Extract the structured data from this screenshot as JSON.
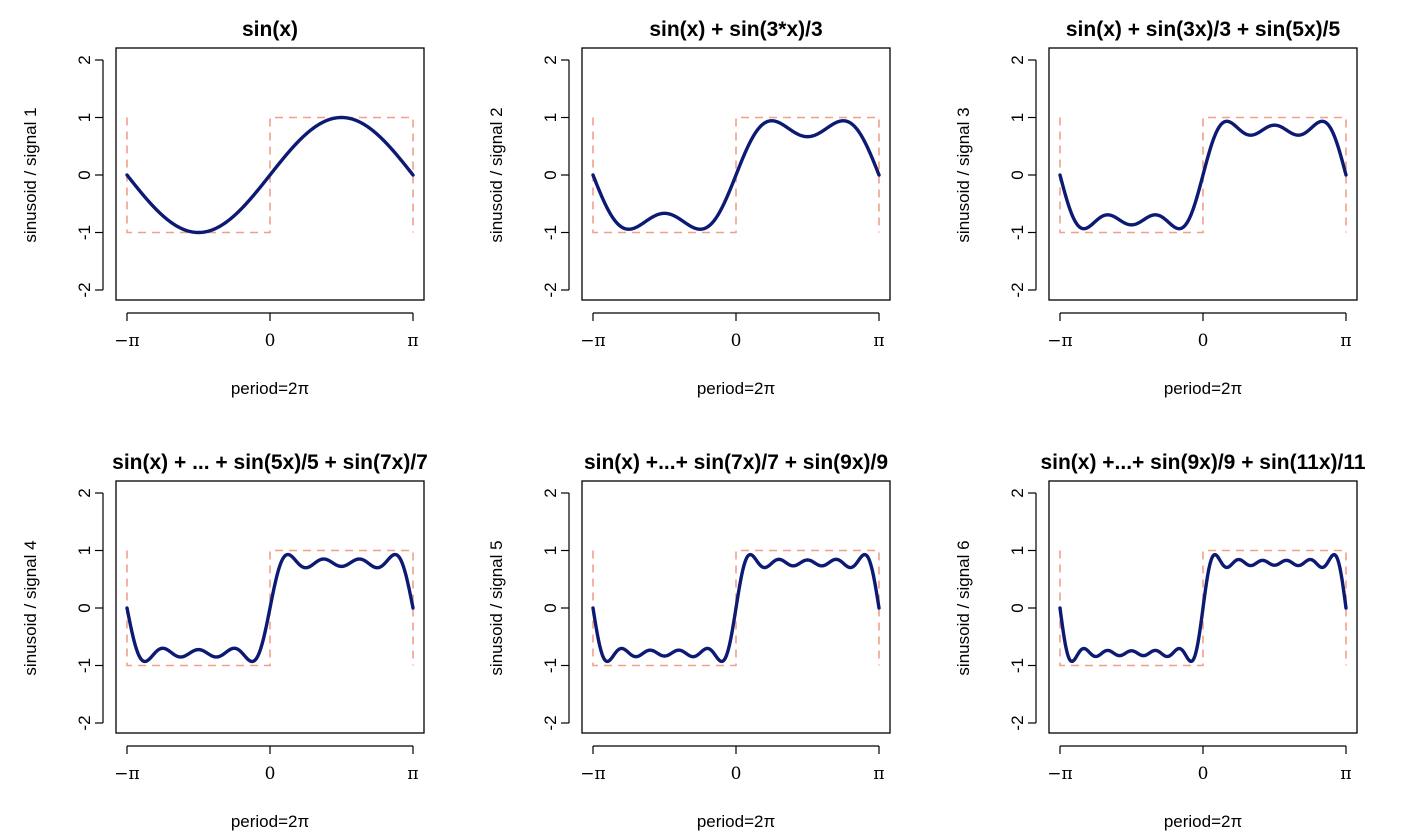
{
  "chart_data": [
    {
      "type": "line",
      "title": "sin(x)",
      "ylabel": "sinusoid / signal 1",
      "xlabel": "period=2π",
      "xlim": [
        -3.14159,
        3.14159
      ],
      "ylim": [
        -2,
        2
      ],
      "x_ticks": [
        "−π",
        "0",
        "π"
      ],
      "y_ticks": [
        "-2",
        "-1",
        "0",
        "1",
        "2"
      ],
      "harmonics": [
        1
      ],
      "series": [
        {
          "name": "sinusoid",
          "style": "solid",
          "color": "#0d1a73",
          "x": [
            -3.14159,
            -2.35619,
            -1.5708,
            -0.7854,
            0,
            0.7854,
            1.5708,
            2.35619,
            3.14159
          ],
          "y": [
            0,
            -0.9,
            -1.27,
            -0.9,
            0,
            0.9,
            1.27,
            0.9,
            0
          ]
        },
        {
          "name": "signal",
          "style": "dashed",
          "color": "#f0a08c",
          "x": [
            -3.14159,
            -3.14159,
            0,
            0,
            3.14159,
            3.14159
          ],
          "y": [
            1,
            -1,
            -1,
            1,
            1,
            -1
          ]
        }
      ]
    },
    {
      "type": "line",
      "title": "sin(x) + sin(3*x)/3",
      "ylabel": "sinusoid / signal 2",
      "xlabel": "period=2π",
      "xlim": [
        -3.14159,
        3.14159
      ],
      "ylim": [
        -2,
        2
      ],
      "x_ticks": [
        "−π",
        "0",
        "π"
      ],
      "y_ticks": [
        "-2",
        "-1",
        "0",
        "1",
        "2"
      ],
      "harmonics": [
        1,
        3
      ],
      "series": [
        {
          "name": "sinusoid",
          "style": "solid",
          "color": "#0d1a73",
          "x": [
            -3.14159,
            -2.35619,
            -1.5708,
            -0.7854,
            0,
            0.7854,
            1.5708,
            2.35619,
            3.14159
          ],
          "y": [
            0,
            -1.2,
            -0.85,
            -1.2,
            0,
            1.2,
            0.85,
            1.2,
            0
          ]
        },
        {
          "name": "signal",
          "style": "dashed",
          "color": "#f0a08c",
          "x": [
            -3.14159,
            -3.14159,
            0,
            0,
            3.14159,
            3.14159
          ],
          "y": [
            1,
            -1,
            -1,
            1,
            1,
            -1
          ]
        }
      ]
    },
    {
      "type": "line",
      "title": "sin(x) + sin(3x)/3 +  sin(5x)/5",
      "ylabel": "sinusoid / signal 3",
      "xlabel": "period=2π",
      "xlim": [
        -3.14159,
        3.14159
      ],
      "ylim": [
        -2,
        2
      ],
      "x_ticks": [
        "−π",
        "0",
        "π"
      ],
      "y_ticks": [
        "-2",
        "-1",
        "0",
        "1",
        "2"
      ],
      "harmonics": [
        1,
        3,
        5
      ],
      "series": [
        {
          "name": "sinusoid",
          "style": "solid",
          "color": "#0d1a73",
          "x": [
            -3.14159,
            -2.51327,
            -1.5708,
            -0.62832,
            0,
            0.62832,
            1.5708,
            2.51327,
            3.14159
          ],
          "y": [
            0,
            -1.18,
            -1.05,
            -1.18,
            0,
            1.18,
            1.05,
            1.18,
            0
          ]
        },
        {
          "name": "signal",
          "style": "dashed",
          "color": "#f0a08c",
          "x": [
            -3.14159,
            -3.14159,
            0,
            0,
            3.14159,
            3.14159
          ],
          "y": [
            1,
            -1,
            -1,
            1,
            1,
            -1
          ]
        }
      ]
    },
    {
      "type": "line",
      "title": "sin(x) + ... +  sin(5x)/5 + sin(7x)/7",
      "ylabel": "sinusoid / signal 4",
      "xlabel": "period=2π",
      "xlim": [
        -3.14159,
        3.14159
      ],
      "ylim": [
        -2,
        2
      ],
      "x_ticks": [
        "−π",
        "0",
        "π"
      ],
      "y_ticks": [
        "-2",
        "-1",
        "0",
        "1",
        "2"
      ],
      "harmonics": [
        1,
        3,
        5,
        7
      ],
      "series": [
        {
          "name": "sinusoid",
          "style": "solid",
          "color": "#0d1a73",
          "x": [
            -3.14159,
            -2.74889,
            -1.5708,
            -0.3927,
            0,
            0.3927,
            1.5708,
            2.74889,
            3.14159
          ],
          "y": [
            0,
            -1.18,
            -0.93,
            -1.18,
            0,
            1.18,
            0.93,
            1.18,
            0
          ]
        },
        {
          "name": "signal",
          "style": "dashed",
          "color": "#f0a08c",
          "x": [
            -3.14159,
            -3.14159,
            0,
            0,
            3.14159,
            3.14159
          ],
          "y": [
            1,
            -1,
            -1,
            1,
            1,
            -1
          ]
        }
      ]
    },
    {
      "type": "line",
      "title": "sin(x) +...+ sin(7x)/7 +  sin(9x)/9",
      "ylabel": "sinusoid / signal 5",
      "xlabel": "period=2π",
      "xlim": [
        -3.14159,
        3.14159
      ],
      "ylim": [
        -2,
        2
      ],
      "x_ticks": [
        "−π",
        "0",
        "π"
      ],
      "y_ticks": [
        "-2",
        "-1",
        "0",
        "1",
        "2"
      ],
      "harmonics": [
        1,
        3,
        5,
        7,
        9
      ],
      "series": [
        {
          "name": "sinusoid",
          "style": "solid",
          "color": "#0d1a73",
          "x": [
            -3.14159,
            -2.82743,
            -1.5708,
            -0.31416,
            0,
            0.31416,
            1.5708,
            2.82743,
            3.14159
          ],
          "y": [
            0,
            -1.18,
            -1.04,
            -1.18,
            0,
            1.18,
            1.04,
            1.18,
            0
          ]
        },
        {
          "name": "signal",
          "style": "dashed",
          "color": "#f0a08c",
          "x": [
            -3.14159,
            -3.14159,
            0,
            0,
            3.14159,
            3.14159
          ],
          "y": [
            1,
            -1,
            -1,
            1,
            1,
            -1
          ]
        }
      ]
    },
    {
      "type": "line",
      "title": "sin(x) +...+ sin(9x)/9 + sin(11x)/11",
      "ylabel": "sinusoid / signal 6",
      "xlabel": "period=2π",
      "xlim": [
        -3.14159,
        3.14159
      ],
      "ylim": [
        -2,
        2
      ],
      "x_ticks": [
        "−π",
        "0",
        "π"
      ],
      "y_ticks": [
        "-2",
        "-1",
        "0",
        "1",
        "2"
      ],
      "harmonics": [
        1,
        3,
        5,
        7,
        9,
        11
      ],
      "series": [
        {
          "name": "sinusoid",
          "style": "solid",
          "color": "#0d1a73",
          "x": [
            -3.14159,
            -2.88,
            -1.5708,
            -0.2618,
            0,
            0.2618,
            1.5708,
            2.88,
            3.14159
          ],
          "y": [
            0,
            -1.18,
            -0.96,
            -1.18,
            0,
            1.18,
            0.96,
            1.18,
            0
          ]
        },
        {
          "name": "signal",
          "style": "dashed",
          "color": "#f0a08c",
          "x": [
            -3.14159,
            -3.14159,
            0,
            0,
            3.14159,
            3.14159
          ],
          "y": [
            1,
            -1,
            -1,
            1,
            1,
            -1
          ]
        }
      ]
    }
  ]
}
